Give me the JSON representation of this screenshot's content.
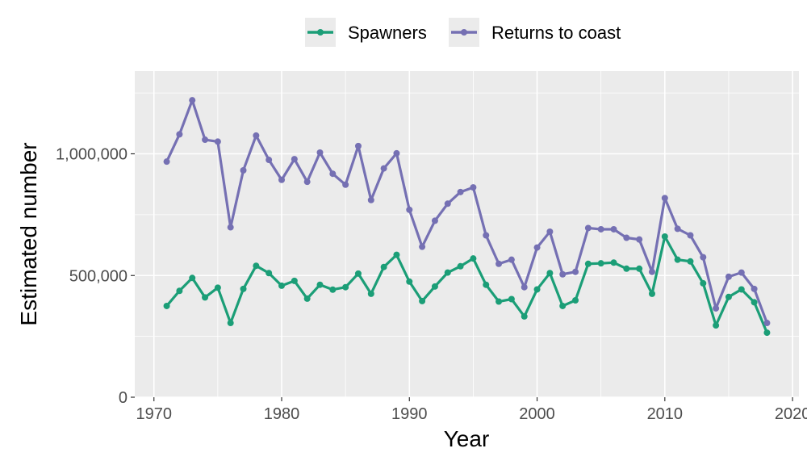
{
  "chart_data": {
    "type": "line",
    "xlabel": "Year",
    "ylabel": "Estimated number",
    "xlim": [
      1968.5,
      2020.5
    ],
    "ylim": [
      0,
      1340000
    ],
    "xticks": [
      1970,
      1980,
      1990,
      2000,
      2010,
      2020
    ],
    "xtick_labels": [
      "1970",
      "1980",
      "1990",
      "2000",
      "2010",
      "2020"
    ],
    "yticks": [
      0,
      500000,
      1000000
    ],
    "ytick_labels": [
      "0",
      "500,000",
      "1,000,000"
    ],
    "grid": true,
    "legend_position": "top",
    "x": [
      1971,
      1972,
      1973,
      1974,
      1975,
      1976,
      1977,
      1978,
      1979,
      1980,
      1981,
      1982,
      1983,
      1984,
      1985,
      1986,
      1987,
      1988,
      1989,
      1990,
      1991,
      1992,
      1993,
      1994,
      1995,
      1996,
      1997,
      1998,
      1999,
      2000,
      2001,
      2002,
      2003,
      2004,
      2005,
      2006,
      2007,
      2008,
      2009,
      2010,
      2011,
      2012,
      2013,
      2014,
      2015,
      2016,
      2017,
      2018
    ],
    "series": [
      {
        "name": "Spawners",
        "color": "#1b9e77",
        "values": [
          375000,
          437000,
          490000,
          410000,
          450000,
          305000,
          445000,
          540000,
          510000,
          458000,
          478000,
          405000,
          462000,
          442000,
          452000,
          508000,
          425000,
          535000,
          585000,
          475000,
          395000,
          455000,
          512000,
          538000,
          570000,
          462000,
          393000,
          403000,
          332000,
          443000,
          510000,
          375000,
          398000,
          548000,
          550000,
          553000,
          528000,
          528000,
          425000,
          660000,
          565000,
          558000,
          468000,
          295000,
          412000,
          443000,
          390000,
          265000
        ]
      },
      {
        "name": "Returns to coast",
        "color": "#7570b3",
        "values": [
          968000,
          1080000,
          1220000,
          1058000,
          1050000,
          698000,
          932000,
          1075000,
          975000,
          893000,
          978000,
          885000,
          1005000,
          918000,
          873000,
          1032000,
          810000,
          940000,
          1002000,
          770000,
          618000,
          725000,
          795000,
          843000,
          862000,
          665000,
          548000,
          565000,
          452000,
          615000,
          680000,
          505000,
          515000,
          695000,
          690000,
          690000,
          655000,
          648000,
          515000,
          818000,
          692000,
          665000,
          575000,
          365000,
          495000,
          512000,
          445000,
          305000
        ]
      }
    ]
  }
}
